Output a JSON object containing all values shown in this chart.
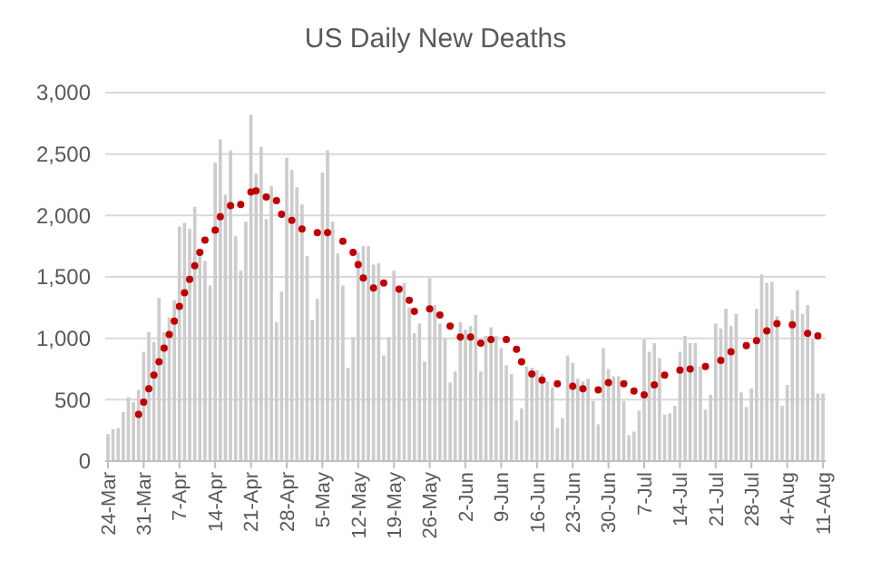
{
  "chart_data": {
    "type": "bar",
    "title": "US Daily New Deaths",
    "categories": [
      "24-Mar",
      null,
      null,
      null,
      null,
      null,
      null,
      "31-Mar",
      null,
      null,
      null,
      null,
      null,
      null,
      "7-Apr",
      null,
      null,
      null,
      null,
      null,
      null,
      "14-Apr",
      null,
      null,
      null,
      null,
      null,
      null,
      "21-Apr",
      null,
      null,
      null,
      null,
      null,
      null,
      "28-Apr",
      null,
      null,
      null,
      null,
      null,
      null,
      "5-May",
      null,
      null,
      null,
      null,
      null,
      null,
      "12-May",
      null,
      null,
      null,
      null,
      null,
      null,
      "19-May",
      null,
      null,
      null,
      null,
      null,
      null,
      "26-May",
      null,
      null,
      null,
      null,
      null,
      null,
      "2-Jun",
      null,
      null,
      null,
      null,
      null,
      null,
      "9-Jun",
      null,
      null,
      null,
      null,
      null,
      null,
      "16-Jun",
      null,
      null,
      null,
      null,
      null,
      null,
      "23-Jun",
      null,
      null,
      null,
      null,
      null,
      null,
      "30-Jun",
      null,
      null,
      null,
      null,
      null,
      null,
      "7-Jul",
      null,
      null,
      null,
      null,
      null,
      null,
      "14-Jul",
      null,
      null,
      null,
      null,
      null,
      null,
      "21-Jul",
      null,
      null,
      null,
      null,
      null,
      null,
      "28-Jul",
      null,
      null,
      null,
      null,
      null,
      null,
      "4-Aug",
      null,
      null,
      null,
      null,
      null,
      null,
      "11-Aug"
    ],
    "series": [
      {
        "color": "#cccccc",
        "values": [
          220,
          260,
          270,
          400,
          520,
          480,
          580,
          890,
          1050,
          970,
          1330,
          1050,
          1170,
          1310,
          1910,
          1940,
          1890,
          2070,
          1710,
          1630,
          1430,
          2430,
          2620,
          2170,
          2530,
          1830,
          1550,
          1950,
          2820,
          2340,
          2560,
          1970,
          2240,
          1130,
          1380,
          2470,
          2370,
          2230,
          2090,
          1670,
          1150,
          1320,
          2350,
          2530,
          1950,
          1690,
          1430,
          760,
          1010,
          1700,
          1750,
          1750,
          1600,
          1610,
          860,
          1010,
          1550,
          1420,
          1450,
          1250,
          1040,
          1120,
          810,
          1490,
          1270,
          1120,
          1000,
          640,
          730,
          1130,
          1070,
          1100,
          1190,
          730,
          1020,
          1090,
          1020,
          920,
          780,
          710,
          330,
          430,
          770,
          760,
          740,
          710,
          650,
          600,
          270,
          350,
          860,
          800,
          670,
          650,
          670,
          490,
          300,
          920,
          750,
          690,
          690,
          490,
          210,
          240,
          410,
          990,
          890,
          960,
          840,
          380,
          390,
          450,
          890,
          1020,
          960,
          960,
          770,
          420,
          540,
          1120,
          1080,
          1240,
          1100,
          1200,
          560,
          440,
          590,
          1240,
          1520,
          1450,
          1460,
          1180,
          450,
          620,
          1230,
          1390,
          1200,
          1270,
          990,
          550,
          550
        ]
      },
      {
        "type": "scatter",
        "color": "#c00000",
        "values": [
          null,
          null,
          null,
          null,
          null,
          null,
          380,
          480,
          590,
          700,
          810,
          920,
          1030,
          1140,
          1260,
          1370,
          1480,
          1590,
          1700,
          1800,
          null,
          1880,
          1990,
          null,
          2080,
          null,
          2090,
          null,
          2190,
          2200,
          null,
          2150,
          null,
          2120,
          2010,
          null,
          1960,
          null,
          1890,
          null,
          null,
          1860,
          null,
          1860,
          null,
          null,
          1790,
          null,
          1700,
          1600,
          1490,
          null,
          1410,
          null,
          1450,
          null,
          null,
          1400,
          null,
          1310,
          1220,
          null,
          null,
          1240,
          null,
          1190,
          null,
          1100,
          null,
          1010,
          null,
          1010,
          null,
          960,
          null,
          990,
          null,
          null,
          990,
          null,
          910,
          810,
          null,
          710,
          null,
          660,
          null,
          null,
          630,
          null,
          null,
          610,
          null,
          590,
          null,
          null,
          580,
          null,
          640,
          null,
          null,
          630,
          null,
          570,
          null,
          540,
          null,
          620,
          null,
          700,
          null,
          null,
          740,
          null,
          750,
          null,
          null,
          770,
          null,
          null,
          820,
          null,
          890,
          null,
          null,
          940,
          null,
          980,
          null,
          1060,
          null,
          1120,
          null,
          null,
          1110,
          null,
          null,
          1040,
          null,
          1020,
          null
        ]
      }
    ],
    "ylim": [
      0,
      3000
    ],
    "yticks": [
      {
        "value": 0,
        "label": "0"
      },
      {
        "value": 500,
        "label": "500"
      },
      {
        "value": 1000,
        "label": "1,000"
      },
      {
        "value": 1500,
        "label": "1,500"
      },
      {
        "value": 2000,
        "label": "2,000"
      },
      {
        "value": 2500,
        "label": "2,500"
      },
      {
        "value": 3000,
        "label": "3,000"
      }
    ],
    "grid": "y",
    "marker": "circle"
  }
}
